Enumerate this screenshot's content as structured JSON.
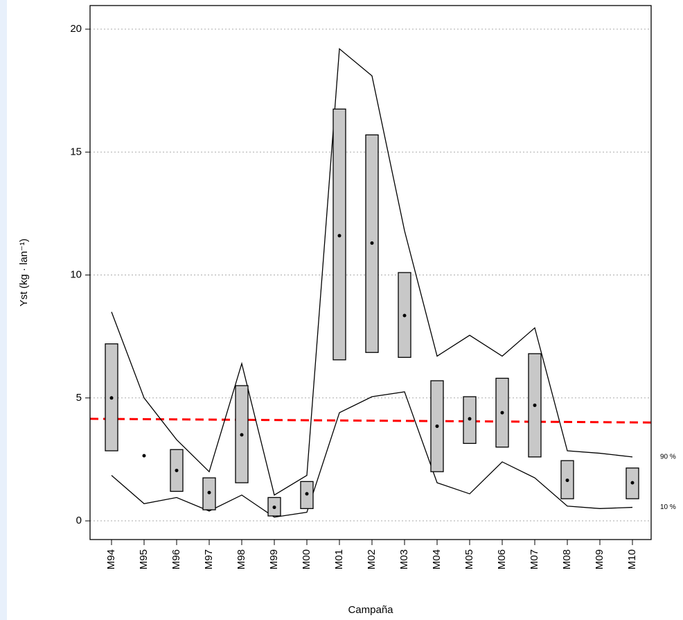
{
  "chart_data": {
    "type": "range",
    "x_label": "Campaña",
    "y_label": "Yst (kg · lan⁻¹)",
    "categories": [
      "M94",
      "M95",
      "M96",
      "M97",
      "M98",
      "M99",
      "M00",
      "M01",
      "M02",
      "M03",
      "M04",
      "M05",
      "M06",
      "M07",
      "M08",
      "M09",
      "M10"
    ],
    "ylim": [
      -0.76,
      20.96
    ],
    "yticks": [
      0,
      5,
      10,
      15,
      20
    ],
    "grid": true,
    "ranges": {
      "color": "#c8c8c8",
      "low": [
        2.85,
        null,
        1.2,
        0.45,
        1.55,
        0.2,
        0.5,
        6.55,
        6.85,
        6.65,
        2.0,
        3.15,
        3.0,
        2.6,
        0.9,
        null,
        0.9
      ],
      "high": [
        7.2,
        null,
        2.9,
        1.75,
        5.5,
        0.95,
        1.6,
        16.75,
        15.7,
        10.1,
        5.7,
        5.05,
        5.8,
        6.8,
        2.45,
        null,
        2.15
      ]
    },
    "points": {
      "color": "#000000",
      "values": [
        5.0,
        2.65,
        2.05,
        1.15,
        3.5,
        0.55,
        1.1,
        11.6,
        11.3,
        8.35,
        3.85,
        4.15,
        4.4,
        4.7,
        1.65,
        null,
        1.55
      ]
    },
    "series": [
      {
        "name": "90 %",
        "color": "#000000",
        "values": [
          8.5,
          5.0,
          3.3,
          2.0,
          6.4,
          1.05,
          1.85,
          19.2,
          18.1,
          11.8,
          6.7,
          7.55,
          6.7,
          7.85,
          2.85,
          2.75,
          2.6
        ]
      },
      {
        "name": "10 %",
        "color": "#000000",
        "values": [
          1.85,
          0.7,
          0.95,
          0.4,
          1.05,
          0.15,
          0.35,
          4.4,
          5.05,
          5.25,
          1.55,
          1.1,
          2.4,
          1.75,
          0.6,
          0.5,
          0.55
        ]
      }
    ],
    "reference_line": {
      "color": "#ff0000",
      "values": [
        4.15,
        4.0
      ]
    }
  }
}
